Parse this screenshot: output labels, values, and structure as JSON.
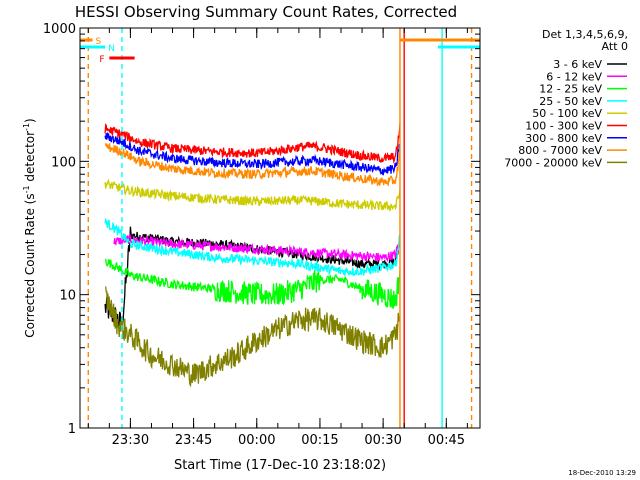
{
  "chart_data": {
    "type": "line",
    "title": "HESSI Observing Summary Count Rates, Corrected",
    "xlabel": "Start Time (17-Dec-10 23:18:02)",
    "ylabel": "Corrected Count Rate (s",
    "ylabel_sup": "-1",
    "ylabel_mid": " detector",
    "ylabel_sup2": "-1",
    "ylabel_end": ")",
    "y_scale": "log",
    "ylim": [
      1,
      1000
    ],
    "y_ticks": [
      {
        "value": 1,
        "label": "1"
      },
      {
        "value": 10,
        "label": "10"
      },
      {
        "value": 100,
        "label": "100"
      },
      {
        "value": 1000,
        "label": "1000"
      }
    ],
    "x_time_range": [
      "23:18:02",
      "00:53:00"
    ],
    "x_ticks": [
      {
        "time": "23:30",
        "label": "23:30"
      },
      {
        "time": "23:45",
        "label": "23:45"
      },
      {
        "time": "00:00",
        "label": "00:00"
      },
      {
        "time": "00:15",
        "label": "00:15"
      },
      {
        "time": "00:30",
        "label": "00:30"
      },
      {
        "time": "00:45",
        "label": "00:45"
      }
    ],
    "legend": {
      "header_line1": "Det 1,3,4,5,6,9,",
      "header_line2": "Att 0",
      "placement": "right"
    },
    "series": [
      {
        "name": "3 - 6 keV",
        "color": "#000000",
        "points": [
          [
            "23:24",
            8
          ],
          [
            "23:26",
            7
          ],
          [
            "23:28",
            6
          ],
          [
            "23:30",
            28
          ],
          [
            "23:40",
            25
          ],
          [
            "23:50",
            24
          ],
          [
            "00:00",
            22
          ],
          [
            "00:10",
            20
          ],
          [
            "00:20",
            18
          ],
          [
            "00:25",
            17
          ],
          [
            "00:30",
            17
          ],
          [
            "00:33",
            18
          ],
          [
            "00:34",
            25
          ]
        ]
      },
      {
        "name": "6 - 12 keV",
        "color": "#ff00ff",
        "points": [
          [
            "23:26",
            25
          ],
          [
            "23:30",
            26
          ],
          [
            "23:40",
            24
          ],
          [
            "23:50",
            23
          ],
          [
            "00:00",
            22
          ],
          [
            "00:10",
            21
          ],
          [
            "00:20",
            20
          ],
          [
            "00:30",
            19
          ],
          [
            "00:33",
            20
          ],
          [
            "00:34",
            26
          ]
        ]
      },
      {
        "name": "12 - 25 keV",
        "color": "#00ff00",
        "points": [
          [
            "23:24",
            18
          ],
          [
            "23:27",
            16
          ],
          [
            "23:30",
            14
          ],
          [
            "23:40",
            12
          ],
          [
            "23:50",
            11
          ],
          [
            "00:00",
            10
          ],
          [
            "00:05",
            10
          ],
          [
            "00:10",
            11
          ],
          [
            "00:15",
            13
          ],
          [
            "00:20",
            13
          ],
          [
            "00:25",
            11
          ],
          [
            "00:30",
            10
          ],
          [
            "00:33",
            9
          ],
          [
            "00:34",
            15
          ]
        ]
      },
      {
        "name": "25 - 50 keV",
        "color": "#00ffff",
        "points": [
          [
            "23:24",
            35
          ],
          [
            "23:26",
            32
          ],
          [
            "23:28",
            28
          ],
          [
            "23:30",
            24
          ],
          [
            "23:40",
            21
          ],
          [
            "23:50",
            19
          ],
          [
            "00:00",
            18
          ],
          [
            "00:10",
            17
          ],
          [
            "00:15",
            16
          ],
          [
            "00:20",
            15
          ],
          [
            "00:25",
            15
          ],
          [
            "00:30",
            16
          ],
          [
            "00:33",
            17
          ],
          [
            "00:34",
            28
          ]
        ]
      },
      {
        "name": "50 - 100 keV",
        "color": "#cccc00",
        "points": [
          [
            "23:24",
            68
          ],
          [
            "23:30",
            60
          ],
          [
            "23:40",
            55
          ],
          [
            "23:50",
            52
          ],
          [
            "00:00",
            50
          ],
          [
            "00:10",
            51
          ],
          [
            "00:15",
            50
          ],
          [
            "00:20",
            48
          ],
          [
            "00:25",
            47
          ],
          [
            "00:30",
            46
          ],
          [
            "00:33",
            46
          ],
          [
            "00:34",
            60
          ]
        ]
      },
      {
        "name": "100 - 300 keV",
        "color": "#ff0000",
        "points": [
          [
            "23:24",
            175
          ],
          [
            "23:28",
            160
          ],
          [
            "23:32",
            140
          ],
          [
            "23:40",
            125
          ],
          [
            "23:50",
            118
          ],
          [
            "00:00",
            115
          ],
          [
            "00:05",
            120
          ],
          [
            "00:10",
            128
          ],
          [
            "00:13",
            130
          ],
          [
            "00:16",
            126
          ],
          [
            "00:20",
            118
          ],
          [
            "00:25",
            110
          ],
          [
            "00:30",
            105
          ],
          [
            "00:33",
            108
          ],
          [
            "00:34",
            180
          ]
        ]
      },
      {
        "name": "300 - 800 keV",
        "color": "#0000ff",
        "points": [
          [
            "23:24",
            155
          ],
          [
            "23:28",
            140
          ],
          [
            "23:32",
            120
          ],
          [
            "23:40",
            105
          ],
          [
            "23:50",
            98
          ],
          [
            "00:00",
            95
          ],
          [
            "00:05",
            98
          ],
          [
            "00:10",
            100
          ],
          [
            "00:13",
            102
          ],
          [
            "00:16",
            99
          ],
          [
            "00:20",
            95
          ],
          [
            "00:25",
            90
          ],
          [
            "00:30",
            85
          ],
          [
            "00:33",
            88
          ],
          [
            "00:34",
            140
          ]
        ]
      },
      {
        "name": "800 - 7000 keV",
        "color": "#ff8800",
        "points": [
          [
            "23:24",
            130
          ],
          [
            "23:28",
            118
          ],
          [
            "23:32",
            100
          ],
          [
            "23:40",
            88
          ],
          [
            "23:50",
            82
          ],
          [
            "00:00",
            80
          ],
          [
            "00:05",
            82
          ],
          [
            "00:10",
            84
          ],
          [
            "00:13",
            85
          ],
          [
            "00:16",
            82
          ],
          [
            "00:20",
            78
          ],
          [
            "00:25",
            74
          ],
          [
            "00:30",
            70
          ],
          [
            "00:33",
            72
          ],
          [
            "00:34",
            120
          ]
        ]
      },
      {
        "name": "7000 - 20000 keV",
        "color": "#808000",
        "points": [
          [
            "23:24",
            10
          ],
          [
            "23:27",
            6
          ],
          [
            "23:30",
            5
          ],
          [
            "23:35",
            3.5
          ],
          [
            "23:40",
            3
          ],
          [
            "23:45",
            2.5
          ],
          [
            "23:50",
            3
          ],
          [
            "23:55",
            3.5
          ],
          [
            "00:00",
            4.5
          ],
          [
            "00:05",
            5.5
          ],
          [
            "00:10",
            6.5
          ],
          [
            "00:15",
            6.5
          ],
          [
            "00:20",
            5.5
          ],
          [
            "00:25",
            4.5
          ],
          [
            "00:30",
            4
          ],
          [
            "00:33",
            5
          ],
          [
            "00:34",
            7
          ]
        ]
      }
    ],
    "flag_bars": {
      "S": {
        "label": "S",
        "color": "#ff8800",
        "ranges": [
          [
            "23:18:02",
            "23:21"
          ],
          [
            "00:34",
            "00:53"
          ]
        ]
      },
      "N": {
        "label": "N",
        "color": "#00ffff",
        "ranges": [
          [
            "23:18:02",
            "23:24"
          ],
          [
            "00:43",
            "00:53"
          ]
        ]
      },
      "F": {
        "label": "F",
        "color": "#ff0000",
        "ranges": [
          [
            "23:25",
            "23:31"
          ]
        ]
      }
    },
    "vertical_markers": [
      {
        "time": "23:20",
        "color": "#ff8800",
        "style": "dashed"
      },
      {
        "time": "23:28",
        "color": "#00ffff",
        "style": "dashed"
      },
      {
        "time": "00:34",
        "color": "#ff8800",
        "style": "solid"
      },
      {
        "time": "00:35",
        "color": "#ff0000",
        "style": "solid"
      },
      {
        "time": "00:44",
        "color": "#00ffff",
        "style": "solid"
      },
      {
        "time": "00:51",
        "color": "#ff8800",
        "style": "dashed"
      }
    ],
    "footer_date": "18-Dec-2010 13:29"
  }
}
